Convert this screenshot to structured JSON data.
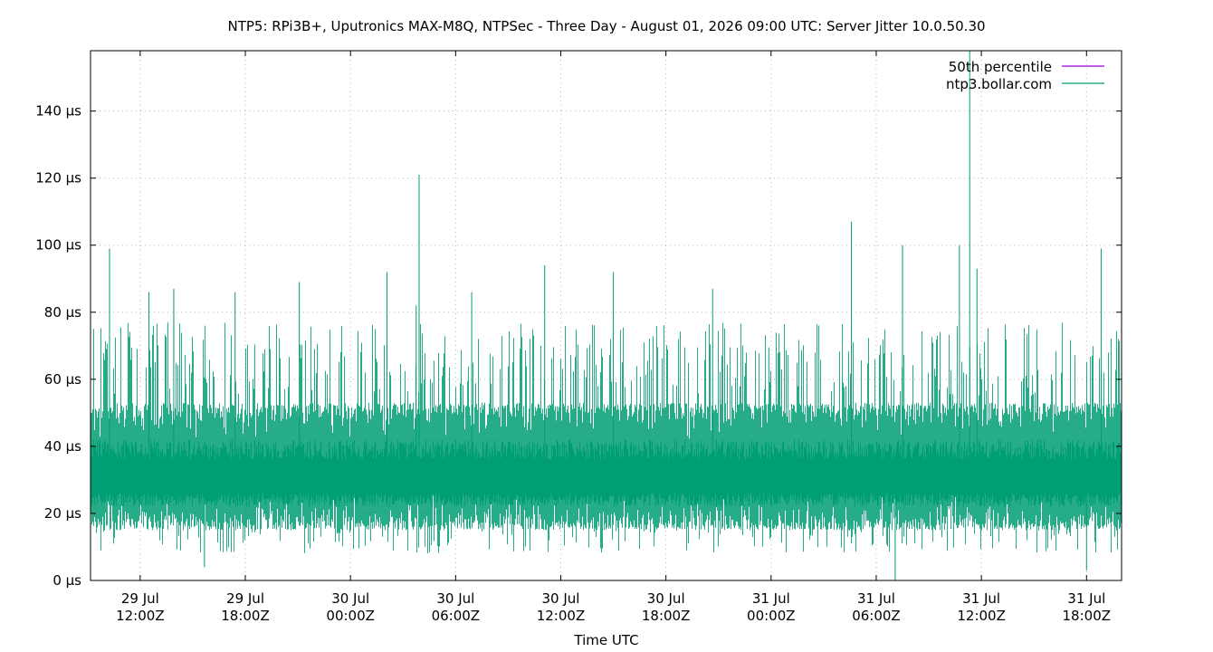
{
  "chart_data": {
    "type": "line",
    "title": "NTP5: RPi3B+, Uputronics MAX-M8Q, NTPSec - Three Day - August 01, 2026 09:00 UTC: Server Jitter 10.0.50.30",
    "xlabel": "Time UTC",
    "ylabel": "",
    "y_unit": "µs",
    "ylim": [
      0,
      158
    ],
    "xlim_hours": [
      0,
      70.6
    ],
    "y_ticks": [
      {
        "value": 0,
        "label": "0 µs"
      },
      {
        "value": 20,
        "label": "20 µs"
      },
      {
        "value": 40,
        "label": "40 µs"
      },
      {
        "value": 60,
        "label": "60 µs"
      },
      {
        "value": 80,
        "label": "80 µs"
      },
      {
        "value": 100,
        "label": "100 µs"
      },
      {
        "value": 120,
        "label": "120 µs"
      },
      {
        "value": 140,
        "label": "140 µs"
      }
    ],
    "x_ticks": [
      {
        "hour": 3.4,
        "line1": "29 Jul",
        "line2": "12:00Z"
      },
      {
        "hour": 10.6,
        "line1": "29 Jul",
        "line2": "18:00Z"
      },
      {
        "hour": 17.8,
        "line1": "30 Jul",
        "line2": "00:00Z"
      },
      {
        "hour": 25.0,
        "line1": "30 Jul",
        "line2": "06:00Z"
      },
      {
        "hour": 32.2,
        "line1": "30 Jul",
        "line2": "12:00Z"
      },
      {
        "hour": 39.4,
        "line1": "30 Jul",
        "line2": "18:00Z"
      },
      {
        "hour": 46.6,
        "line1": "31 Jul",
        "line2": "00:00Z"
      },
      {
        "hour": 53.8,
        "line1": "31 Jul",
        "line2": "06:00Z"
      },
      {
        "hour": 61.0,
        "line1": "31 Jul",
        "line2": "12:00Z"
      },
      {
        "hour": 68.2,
        "line1": "31 Jul",
        "line2": "18:00Z"
      }
    ],
    "grid": true,
    "legend_position": "top-right",
    "series": [
      {
        "name": "50th percentile",
        "color": "#9400d3",
        "values": []
      },
      {
        "name": "ntp3.bollar.com",
        "color": "#009e73",
        "typical_range": [
          15,
          45
        ],
        "median_approx": 30,
        "spikes": [
          {
            "hour": 1.3,
            "value": 99
          },
          {
            "hour": 4.0,
            "value": 86
          },
          {
            "hour": 5.7,
            "value": 87
          },
          {
            "hour": 9.9,
            "value": 86
          },
          {
            "hour": 14.3,
            "value": 89
          },
          {
            "hour": 20.3,
            "value": 92
          },
          {
            "hour": 22.3,
            "value": 82
          },
          {
            "hour": 22.5,
            "value": 121
          },
          {
            "hour": 26.1,
            "value": 86
          },
          {
            "hour": 31.1,
            "value": 94
          },
          {
            "hour": 35.8,
            "value": 92
          },
          {
            "hour": 42.6,
            "value": 87
          },
          {
            "hour": 52.1,
            "value": 107
          },
          {
            "hour": 55.6,
            "value": 100
          },
          {
            "hour": 59.5,
            "value": 100
          },
          {
            "hour": 60.2,
            "value": 158
          },
          {
            "hour": 60.7,
            "value": 93
          },
          {
            "hour": 69.2,
            "value": 99
          }
        ],
        "dips": [
          {
            "hour": 7.8,
            "value": 4
          },
          {
            "hour": 55.1,
            "value": 0
          },
          {
            "hour": 68.2,
            "value": 3
          }
        ]
      }
    ]
  }
}
